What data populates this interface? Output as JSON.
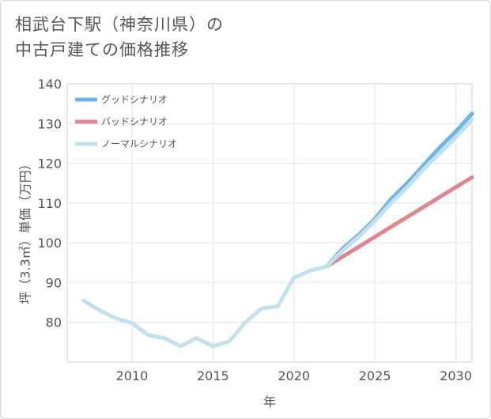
{
  "title": {
    "line1": "相武台下駅（神奈川県）の",
    "line2": "中古戸建ての価格推移"
  },
  "chart_data": {
    "type": "line",
    "xlabel": "年",
    "ylabel": "坪（3.3㎡）単価（万円）",
    "xlim": [
      2006,
      2031
    ],
    "ylim": [
      70,
      140
    ],
    "xticks": [
      2010,
      2015,
      2020,
      2025,
      2030
    ],
    "yticks": [
      80,
      90,
      100,
      110,
      120,
      130,
      140
    ],
    "grid": true,
    "legend_position": "top-left",
    "series": [
      {
        "name": "グッドシナリオ",
        "color": "#6fb6e8",
        "x": [
          2022,
          2023,
          2024,
          2025,
          2026,
          2027,
          2028,
          2029,
          2030,
          2031
        ],
        "y": [
          94.0,
          98.5,
          102.0,
          106.0,
          111.0,
          115.0,
          119.5,
          124.0,
          128.0,
          132.5
        ]
      },
      {
        "name": "バッドシナリオ",
        "color": "#e0868f",
        "x": [
          2022,
          2023,
          2024,
          2025,
          2026,
          2027,
          2028,
          2029,
          2030,
          2031
        ],
        "y": [
          94.0,
          96.5,
          99.0,
          101.5,
          104.0,
          106.5,
          109.0,
          111.5,
          114.0,
          116.5
        ]
      },
      {
        "name": "ノーマルシナリオ",
        "color": "#c2e0ee",
        "x": [
          2007,
          2008,
          2009,
          2010,
          2011,
          2012,
          2013,
          2014,
          2015,
          2016,
          2017,
          2018,
          2019,
          2020,
          2021,
          2022,
          2023,
          2024,
          2025,
          2026,
          2027,
          2028,
          2029,
          2030,
          2031
        ],
        "y": [
          85.5,
          83.0,
          81.0,
          79.8,
          76.8,
          76.0,
          74.0,
          76.0,
          74.0,
          75.2,
          80.0,
          83.5,
          84.0,
          91.2,
          93.0,
          94.0,
          98.0,
          101.5,
          105.5,
          110.0,
          114.0,
          118.5,
          122.5,
          126.5,
          131.0
        ]
      }
    ]
  }
}
